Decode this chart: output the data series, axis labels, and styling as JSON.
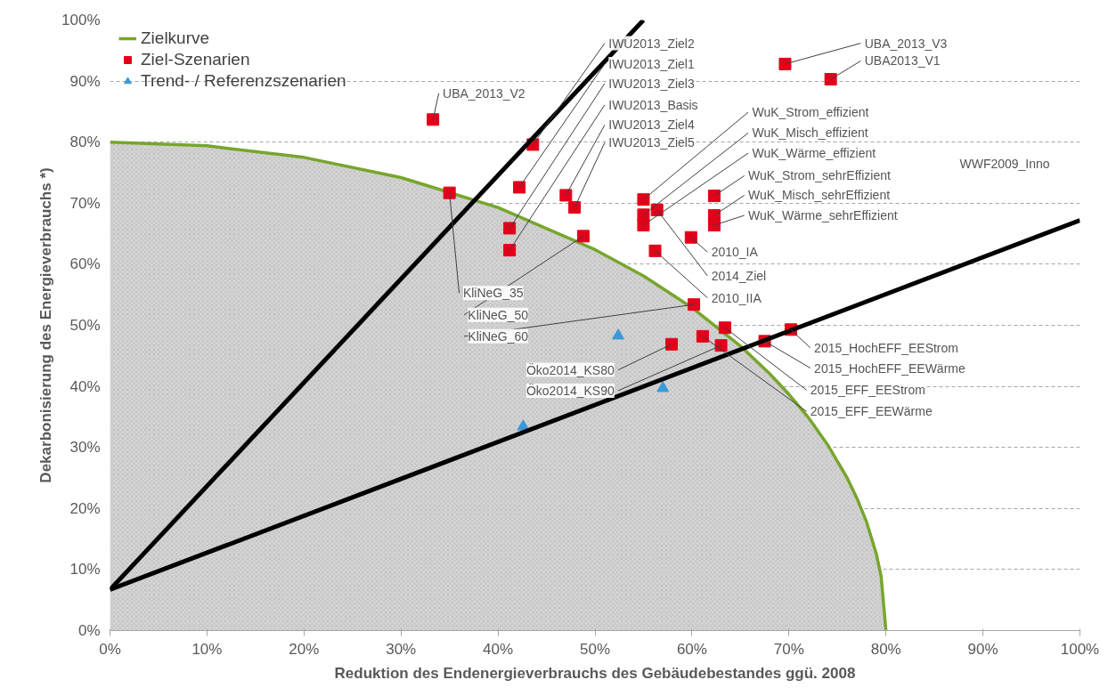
{
  "chart_data": {
    "type": "scatter",
    "xlabel": "Reduktion des Endenergieverbrauchs des Gebäudebestandes ggü. 2008",
    "ylabel": "Dekarbonisierung des Energieverbrauchs *)",
    "xlim": [
      0,
      100
    ],
    "ylim": [
      0,
      100
    ],
    "xticks": [
      {
        "value": 0,
        "label": "0%"
      },
      {
        "value": 10,
        "label": "10%"
      },
      {
        "value": 20,
        "label": "20%"
      },
      {
        "value": 30,
        "label": "30%"
      },
      {
        "value": 40,
        "label": "40%"
      },
      {
        "value": 50,
        "label": "50%"
      },
      {
        "value": 60,
        "label": "60%"
      },
      {
        "value": 70,
        "label": "70%"
      },
      {
        "value": 80,
        "label": "80%"
      },
      {
        "value": 90,
        "label": "90%"
      },
      {
        "value": 100,
        "label": "100%"
      }
    ],
    "yticks": [
      {
        "value": 0,
        "label": "0%"
      },
      {
        "value": 10,
        "label": "10%"
      },
      {
        "value": 20,
        "label": "20%"
      },
      {
        "value": 30,
        "label": "30%"
      },
      {
        "value": 40,
        "label": "40%"
      },
      {
        "value": 50,
        "label": "50%"
      },
      {
        "value": 60,
        "label": "60%"
      },
      {
        "value": 70,
        "label": "70%"
      },
      {
        "value": 80,
        "label": "80%"
      },
      {
        "value": 90,
        "label": "90%"
      },
      {
        "value": 100,
        "label": "100%"
      }
    ],
    "grid": "y",
    "legend": "top left",
    "annotations": [
      {
        "text": "UBA_2013_V2",
        "x": 33.3,
        "y": 83.7
      },
      {
        "text": "UBA_2013_V3",
        "x": 69.6,
        "y": 92.8
      },
      {
        "text": "UBA2013_V1",
        "x": 74.3,
        "y": 90.3
      },
      {
        "text": "IWU2013_Ziel2",
        "x": 43.6,
        "y": 79.6
      },
      {
        "text": "IWU2013_Ziel1",
        "x": 42.2,
        "y": 72.6
      },
      {
        "text": "IWU2013_Ziel3",
        "x": 41.2,
        "y": 65.9
      },
      {
        "text": "IWU2013_Basis",
        "x": 41.2,
        "y": 62.3
      },
      {
        "text": "IWU2013_Ziel4",
        "x": 47.0,
        "y": 71.3
      },
      {
        "text": "IWU2013_Ziel5",
        "x": 47.9,
        "y": 69.3
      },
      {
        "text": "KliNeG_35",
        "x": 35.0,
        "y": 71.7
      },
      {
        "text": "KliNeG_50",
        "x": 48.8,
        "y": 64.6
      },
      {
        "text": "KliNeG_60",
        "x": 60.2,
        "y": 53.4
      },
      {
        "text": "WuK_Strom_effizient",
        "x": 55.0,
        "y": 70.6
      },
      {
        "text": "WuK_Misch_effizient",
        "x": 55.0,
        "y": 68.1
      },
      {
        "text": "WuK_Wärme_effizient",
        "x": 55.0,
        "y": 66.4
      },
      {
        "text": "WuK_Strom_sehrEffizient",
        "x": 62.3,
        "y": 71.2
      },
      {
        "text": "WuK_Misch_sehrEffizient",
        "x": 62.3,
        "y": 68.0
      },
      {
        "text": "WuK_Wärme_sehrEffizient",
        "x": 62.3,
        "y": 66.4
      },
      {
        "text": "2010_IA",
        "x": 59.9,
        "y": 64.4
      },
      {
        "text": "2014_Ziel",
        "x": 56.4,
        "y": 68.9
      },
      {
        "text": "2010_IIA",
        "x": 56.2,
        "y": 62.2
      },
      {
        "text": "Öko2014_KS80",
        "x": 57.9,
        "y": 46.9
      },
      {
        "text": "Öko2014_KS90",
        "x": 63.0,
        "y": 46.7
      },
      {
        "text": "2015_HochEFF_EEStrom",
        "x": 70.2,
        "y": 49.3
      },
      {
        "text": "2015_HochEFF_EEWärme",
        "x": 67.5,
        "y": 47.4
      },
      {
        "text": "2015_EFF_EEStrom",
        "x": 63.4,
        "y": 49.6
      },
      {
        "text": "2015_EFF_EEWärme",
        "x": 61.1,
        "y": 48.2
      },
      "WWF2009_Inno"
    ],
    "series": [
      {
        "name": "Zielkurve",
        "type": "area",
        "color": "#77a62b",
        "x": [
          0,
          10,
          20,
          30,
          40,
          50,
          55,
          60,
          65,
          68,
          70,
          72,
          74,
          76,
          77,
          78,
          79,
          79.5,
          80
        ],
        "values": [
          80,
          79.4,
          77.5,
          74.2,
          69.3,
          62.4,
          58.1,
          52.9,
          46.6,
          42.1,
          38.7,
          34.9,
          30.4,
          25.0,
          21.7,
          17.8,
          12.6,
          8.9,
          0
        ]
      },
      {
        "name": "Ziel-Szenarien",
        "marker": "square",
        "color": "#e2001a",
        "x": [
          33.3,
          69.6,
          74.3,
          43.6,
          42.2,
          41.2,
          41.2,
          47.0,
          47.9,
          35.0,
          48.8,
          60.2,
          55.0,
          55.0,
          55.0,
          62.3,
          62.3,
          62.3,
          59.9,
          56.4,
          56.2,
          57.9,
          63.0,
          70.2,
          67.5,
          63.4,
          61.1
        ],
        "values": [
          83.7,
          92.8,
          90.3,
          79.6,
          72.6,
          65.9,
          62.3,
          71.3,
          69.3,
          71.7,
          64.6,
          53.4,
          70.6,
          68.1,
          66.4,
          71.2,
          68.0,
          66.4,
          64.4,
          68.9,
          62.2,
          46.9,
          46.7,
          49.3,
          47.4,
          49.6,
          48.2
        ]
      },
      {
        "name": "Trend- / Referenzszenarien",
        "marker": "triangle",
        "color": "#3b99d8",
        "x": [
          52.4,
          57.0,
          42.6
        ],
        "values": [
          48.3,
          39.7,
          33.4
        ]
      },
      {
        "type": "line",
        "color": "#000000",
        "x": [
          0,
          55.0
        ],
        "values": [
          6.7,
          100
        ]
      },
      {
        "type": "line",
        "color": "#000000",
        "x": [
          0,
          100
        ],
        "values": [
          6.7,
          67.2
        ]
      }
    ]
  }
}
